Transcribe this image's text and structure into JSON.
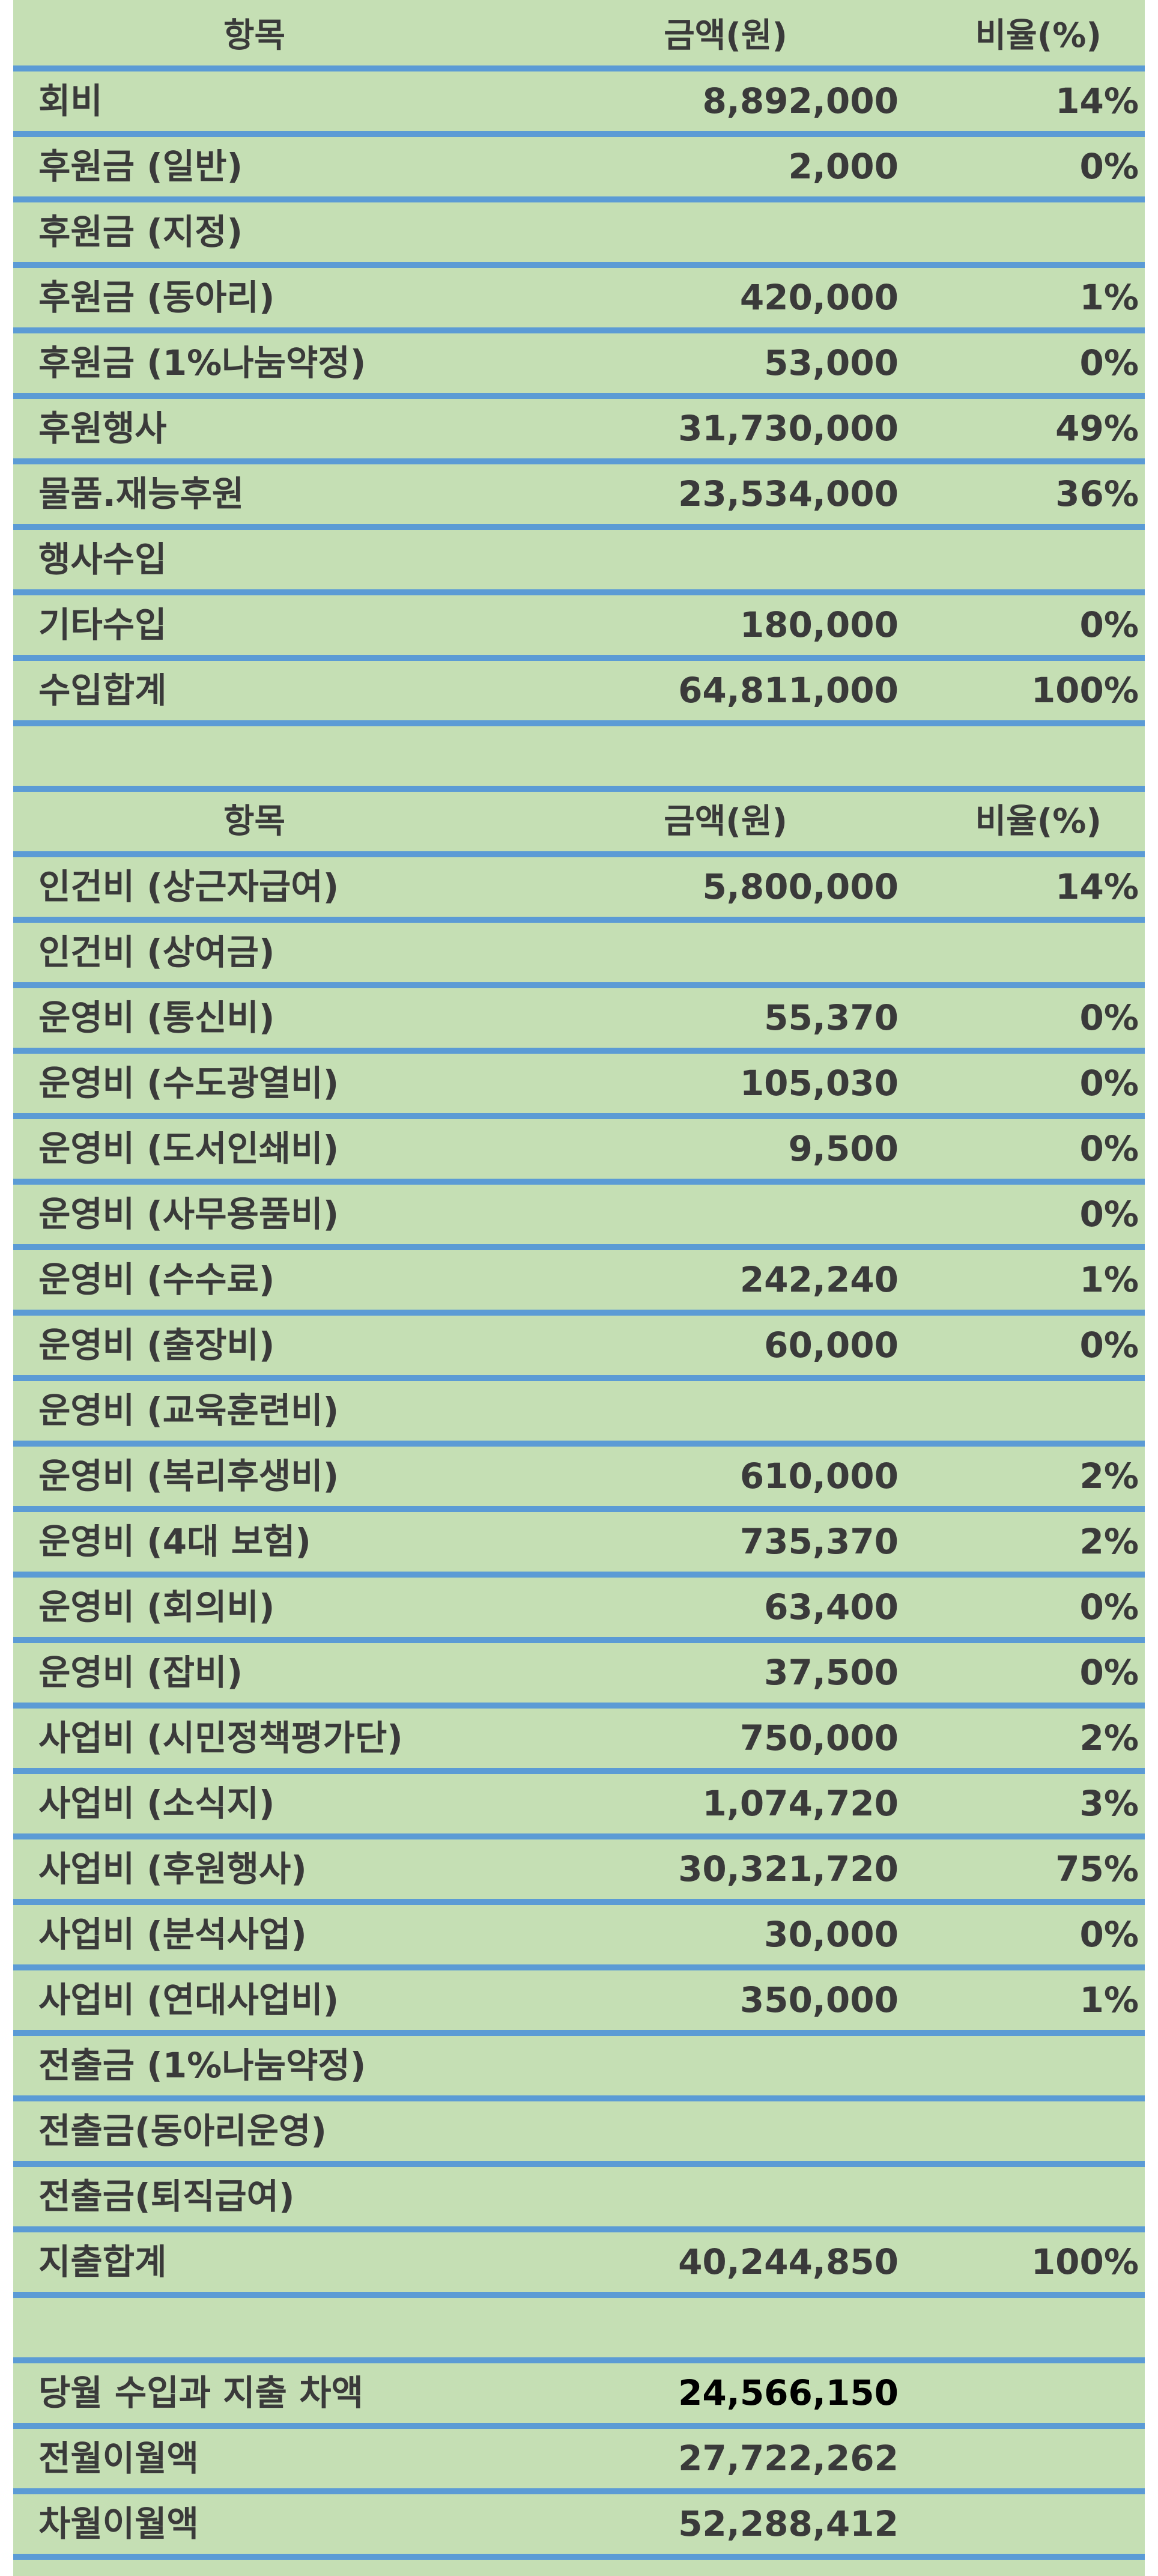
{
  "income": {
    "header": {
      "item": "항목",
      "amount": "금액(원)",
      "ratio": "비율(%)"
    },
    "rows": [
      {
        "item": "회비",
        "amount": "8,892,000",
        "ratio": "14%"
      },
      {
        "item": "후원금 (일반)",
        "amount": "2,000",
        "ratio": "0%"
      },
      {
        "item": "후원금 (지정)",
        "amount": "",
        "ratio": ""
      },
      {
        "item": "후원금 (동아리)",
        "amount": "420,000",
        "ratio": "1%"
      },
      {
        "item": "후원금 (1%나눔약정)",
        "amount": "53,000",
        "ratio": "0%"
      },
      {
        "item": "후원행사",
        "amount": "31,730,000",
        "ratio": "49%"
      },
      {
        "item": "물품.재능후원",
        "amount": "23,534,000",
        "ratio": "36%"
      },
      {
        "item": "행사수입",
        "amount": "",
        "ratio": ""
      },
      {
        "item": "기타수입",
        "amount": "180,000",
        "ratio": "0%"
      },
      {
        "item": "수입합계",
        "amount": "64,811,000",
        "ratio": "100%"
      }
    ]
  },
  "expense": {
    "header": {
      "item": "항목",
      "amount": "금액(원)",
      "ratio": "비율(%)"
    },
    "rows": [
      {
        "item": "인건비 (상근자급여)",
        "amount": "5,800,000",
        "ratio": "14%"
      },
      {
        "item": "인건비 (상여금)",
        "amount": "",
        "ratio": ""
      },
      {
        "item": "운영비 (통신비)",
        "amount": "55,370",
        "ratio": "0%"
      },
      {
        "item": "운영비 (수도광열비)",
        "amount": "105,030",
        "ratio": "0%"
      },
      {
        "item": "운영비 (도서인쇄비)",
        "amount": "9,500",
        "ratio": "0%"
      },
      {
        "item": "운영비 (사무용품비)",
        "amount": "",
        "ratio": "0%"
      },
      {
        "item": "운영비 (수수료)",
        "amount": "242,240",
        "ratio": "1%"
      },
      {
        "item": "운영비 (출장비)",
        "amount": "60,000",
        "ratio": "0%"
      },
      {
        "item": "운영비 (교육훈련비)",
        "amount": "",
        "ratio": ""
      },
      {
        "item": "운영비 (복리후생비)",
        "amount": "610,000",
        "ratio": "2%"
      },
      {
        "item": "운영비 (4대 보험)",
        "amount": "735,370",
        "ratio": "2%"
      },
      {
        "item": "운영비 (회의비)",
        "amount": "63,400",
        "ratio": "0%"
      },
      {
        "item": "운영비 (잡비)",
        "amount": "37,500",
        "ratio": "0%"
      },
      {
        "item": "사업비 (시민정책평가단)",
        "amount": "750,000",
        "ratio": "2%"
      },
      {
        "item": "사업비 (소식지)",
        "amount": "1,074,720",
        "ratio": "3%"
      },
      {
        "item": "사업비 (후원행사)",
        "amount": "30,321,720",
        "ratio": "75%"
      },
      {
        "item": "사업비 (분석사업)",
        "amount": "30,000",
        "ratio": "0%"
      },
      {
        "item": "사업비 (연대사업비)",
        "amount": "350,000",
        "ratio": "1%"
      },
      {
        "item": "전출금 (1%나눔약정)",
        "amount": "",
        "ratio": ""
      },
      {
        "item": "전출금(동아리운영)",
        "amount": "",
        "ratio": ""
      },
      {
        "item": "전출금(퇴직급여)",
        "amount": "",
        "ratio": ""
      },
      {
        "item": "지출합계",
        "amount": "40,244,850",
        "ratio": "100%"
      }
    ]
  },
  "summary": {
    "rows": [
      {
        "item": "당월 수입과 지출 차액",
        "amount": "24,566,150",
        "ratio": ""
      },
      {
        "item": "전월이월액",
        "amount": "27,722,262",
        "ratio": ""
      },
      {
        "item": "차월이월액",
        "amount": "52,288,412",
        "ratio": ""
      }
    ]
  },
  "colors": {
    "background": "#c5dfb4",
    "divider": "#5b9bd5",
    "text": "#3a3a3a"
  }
}
